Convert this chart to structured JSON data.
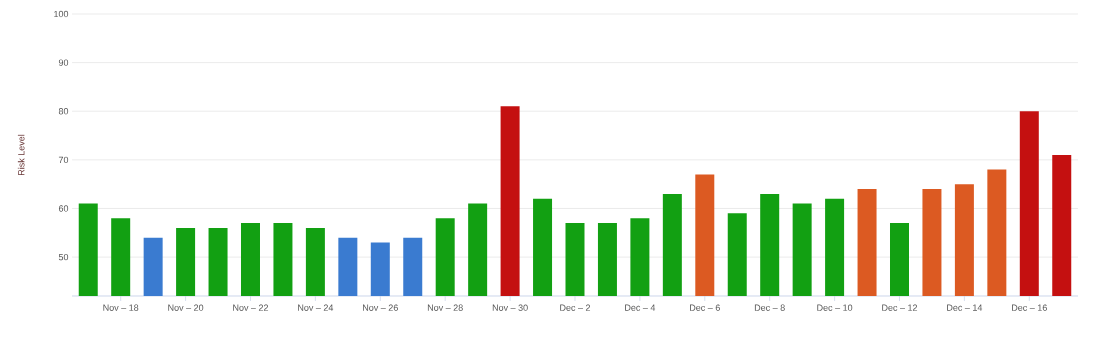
{
  "chart_data": {
    "type": "bar",
    "ylabel": "Risk Level",
    "categories": [
      null,
      "Nov – 18",
      null,
      "Nov – 20",
      null,
      "Nov – 22",
      null,
      "Nov – 24",
      null,
      "Nov – 26",
      null,
      "Nov – 28",
      null,
      "Nov – 30",
      null,
      "Dec – 2",
      null,
      "Dec – 4",
      null,
      "Dec – 6",
      null,
      "Dec – 8",
      null,
      "Dec – 10",
      null,
      "Dec – 12",
      null,
      "Dec – 14",
      null,
      "Dec – 16",
      null
    ],
    "values": [
      61,
      58,
      54,
      56,
      56,
      57,
      57,
      56,
      54,
      53,
      54,
      58,
      61,
      81,
      62,
      57,
      57,
      58,
      63,
      67,
      59,
      63,
      61,
      62,
      64,
      57,
      64,
      65,
      68,
      80,
      71
    ],
    "colors": [
      "#12a012",
      "#12a012",
      "#3a7bd0",
      "#12a012",
      "#12a012",
      "#12a012",
      "#12a012",
      "#12a012",
      "#3a7bd0",
      "#3a7bd0",
      "#3a7bd0",
      "#12a012",
      "#12a012",
      "#c41010",
      "#12a012",
      "#12a012",
      "#12a012",
      "#12a012",
      "#12a012",
      "#dc5a22",
      "#12a012",
      "#12a012",
      "#12a012",
      "#12a012",
      "#dc5a22",
      "#12a012",
      "#dc5a22",
      "#dc5a22",
      "#dc5a22",
      "#c41010",
      "#c41010"
    ],
    "ylim": [
      42,
      100
    ],
    "yticks": [
      50,
      60,
      70,
      80,
      90,
      100
    ],
    "grid": "y"
  }
}
